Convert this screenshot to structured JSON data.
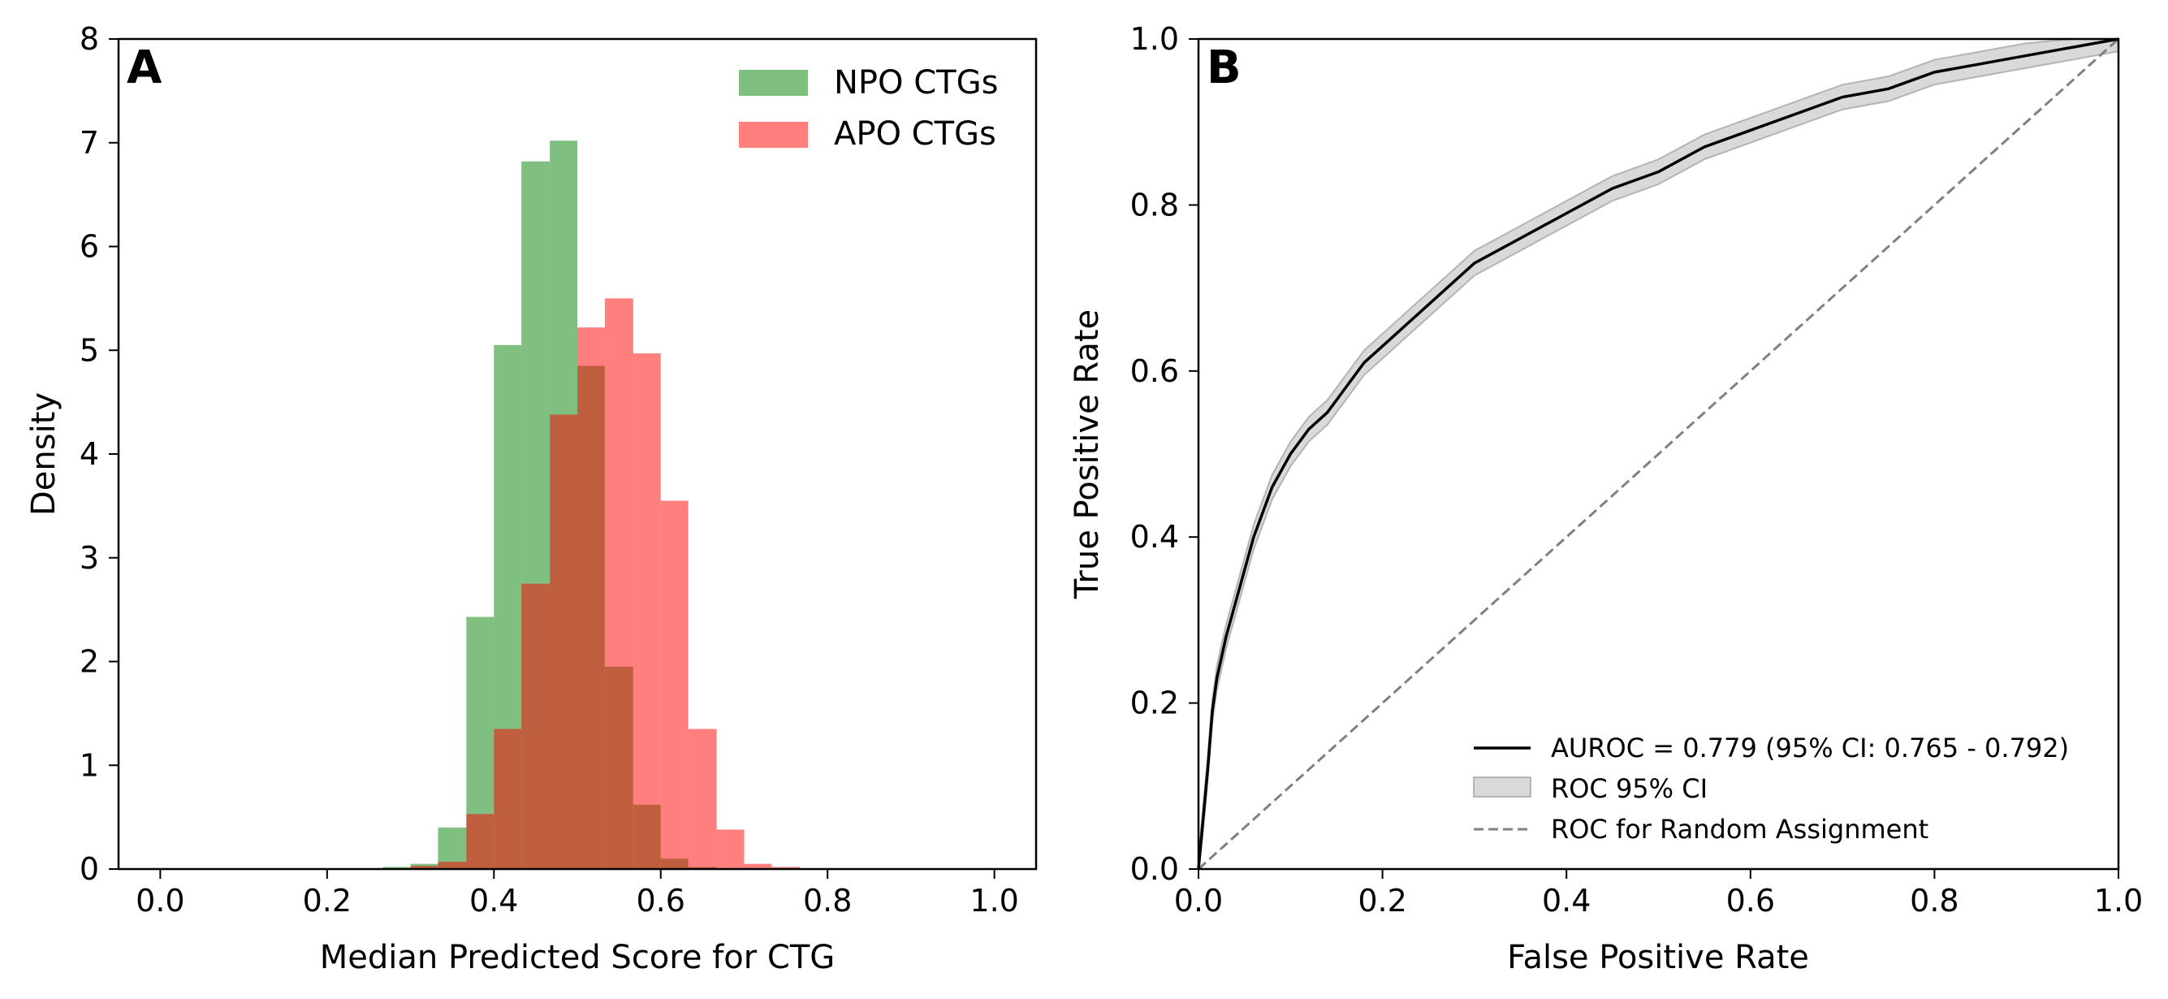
{
  "chart_data": [
    {
      "type": "histogram",
      "panel_label": "A",
      "xlabel": "Median Predicted Score for CTG",
      "ylabel": "Density",
      "xlim": [
        -0.05,
        1.05
      ],
      "ylim": [
        0,
        8
      ],
      "xticks": [
        "0.0",
        "0.2",
        "0.4",
        "0.6",
        "0.8",
        "1.0"
      ],
      "yticks": [
        "0",
        "1",
        "2",
        "3",
        "4",
        "5",
        "6",
        "7",
        "8"
      ],
      "legend_position": "top-right",
      "series": [
        {
          "name": "NPO CTGs",
          "color": "#008000",
          "opacity": 0.5,
          "bins": [
            {
              "x0": 0.267,
              "x1": 0.3,
              "value": 0.02
            },
            {
              "x0": 0.3,
              "x1": 0.333,
              "value": 0.05
            },
            {
              "x0": 0.333,
              "x1": 0.367,
              "value": 0.4
            },
            {
              "x0": 0.367,
              "x1": 0.4,
              "value": 2.43
            },
            {
              "x0": 0.4,
              "x1": 0.433,
              "value": 5.05
            },
            {
              "x0": 0.433,
              "x1": 0.467,
              "value": 6.82
            },
            {
              "x0": 0.467,
              "x1": 0.5,
              "value": 7.02
            },
            {
              "x0": 0.5,
              "x1": 0.533,
              "value": 4.85
            },
            {
              "x0": 0.533,
              "x1": 0.567,
              "value": 1.95
            },
            {
              "x0": 0.567,
              "x1": 0.6,
              "value": 0.62
            },
            {
              "x0": 0.6,
              "x1": 0.633,
              "value": 0.1
            },
            {
              "x0": 0.633,
              "x1": 0.667,
              "value": 0.02
            }
          ]
        },
        {
          "name": "APO CTGs",
          "color": "#ff0000",
          "opacity": 0.5,
          "bins": [
            {
              "x0": 0.3,
              "x1": 0.333,
              "value": 0.03
            },
            {
              "x0": 0.333,
              "x1": 0.367,
              "value": 0.07
            },
            {
              "x0": 0.367,
              "x1": 0.4,
              "value": 0.53
            },
            {
              "x0": 0.4,
              "x1": 0.433,
              "value": 1.35
            },
            {
              "x0": 0.433,
              "x1": 0.467,
              "value": 2.75
            },
            {
              "x0": 0.467,
              "x1": 0.5,
              "value": 4.38
            },
            {
              "x0": 0.5,
              "x1": 0.533,
              "value": 5.22
            },
            {
              "x0": 0.533,
              "x1": 0.567,
              "value": 5.5
            },
            {
              "x0": 0.567,
              "x1": 0.6,
              "value": 4.97
            },
            {
              "x0": 0.6,
              "x1": 0.633,
              "value": 3.55
            },
            {
              "x0": 0.633,
              "x1": 0.667,
              "value": 1.35
            },
            {
              "x0": 0.667,
              "x1": 0.7,
              "value": 0.38
            },
            {
              "x0": 0.7,
              "x1": 0.733,
              "value": 0.05
            },
            {
              "x0": 0.733,
              "x1": 0.767,
              "value": 0.02
            }
          ]
        }
      ]
    },
    {
      "type": "line",
      "panel_label": "B",
      "xlabel": "False Positive Rate",
      "ylabel": "True Positive Rate",
      "xlim": [
        0,
        1
      ],
      "ylim": [
        0,
        1
      ],
      "xticks": [
        "0.0",
        "0.2",
        "0.4",
        "0.6",
        "0.8",
        "1.0"
      ],
      "yticks": [
        "0.0",
        "0.2",
        "0.4",
        "0.6",
        "0.8",
        "1.0"
      ],
      "legend_position": "lower-right",
      "ci_halfwidth": 0.015,
      "series": [
        {
          "name": "AUROC = 0.779 (95% CI: 0.765 - 0.792)",
          "style": "solid",
          "color": "#000000",
          "x": [
            0,
            0.005,
            0.01,
            0.015,
            0.02,
            0.03,
            0.04,
            0.05,
            0.06,
            0.07,
            0.08,
            0.09,
            0.1,
            0.12,
            0.14,
            0.16,
            0.18,
            0.2,
            0.25,
            0.3,
            0.35,
            0.4,
            0.45,
            0.5,
            0.55,
            0.6,
            0.65,
            0.7,
            0.75,
            0.8,
            0.85,
            0.9,
            0.95,
            1.0
          ],
          "y": [
            0,
            0.06,
            0.12,
            0.19,
            0.23,
            0.28,
            0.32,
            0.36,
            0.4,
            0.43,
            0.46,
            0.48,
            0.5,
            0.53,
            0.55,
            0.58,
            0.61,
            0.63,
            0.68,
            0.73,
            0.76,
            0.79,
            0.82,
            0.84,
            0.87,
            0.89,
            0.91,
            0.93,
            0.94,
            0.96,
            0.97,
            0.98,
            0.99,
            1.0
          ]
        },
        {
          "name": "ROC 95% CI",
          "style": "band",
          "color": "#808080"
        },
        {
          "name": "ROC for Random Assignment",
          "style": "dashed",
          "color": "#808080",
          "x": [
            0,
            1
          ],
          "y": [
            0,
            1
          ]
        }
      ]
    }
  ]
}
